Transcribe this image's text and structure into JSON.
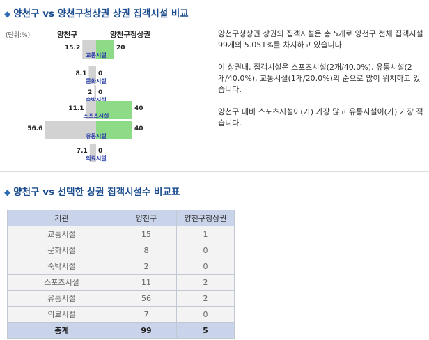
{
  "section1": {
    "title": "양천구 vs 양천구청상권 상권 집객시설 비교"
  },
  "unit_label": "(단위:%)",
  "chart_head": {
    "left": "양천구",
    "right": "양천구청상권"
  },
  "chart_data": {
    "type": "bar",
    "categories": [
      "교통시설",
      "문화시설",
      "숙박시설",
      "스포츠시설",
      "유통시설",
      "의료시설"
    ],
    "series": [
      {
        "name": "양천구",
        "values": [
          15.2,
          8.1,
          2,
          11.1,
          56.6,
          7.1
        ]
      },
      {
        "name": "양천구청상권",
        "values": [
          20,
          0,
          0,
          40,
          40,
          0
        ]
      }
    ],
    "left_labels": [
      "15.2",
      "8.1",
      "2",
      "11.1",
      "56.6",
      "7.1"
    ],
    "right_labels": [
      "20",
      "0",
      "0",
      "40",
      "40",
      "0"
    ],
    "colors": {
      "left": "#d2d2d2",
      "right": "#8ddb86",
      "category_label": "#2a3fa8",
      "value_label": "#222222"
    }
  },
  "description": {
    "p1": "양천구청상권 상권의 집객시설은 총 5개로 양천구 전체 집객시설 99개의 5.051%를 차지하고 있습니다",
    "p2": "이 상권내, 집객시설은 스포츠시설(2개/40.0%), 유통시설(2개/40.0%), 교통시설(1개/20.0%)의 순으로 많이 위치하고 있습니다.",
    "p3": "양천구 대비 스포츠시설이(가) 가장 많고 유통시설이(가) 가장 적습니다."
  },
  "section2": {
    "title": "양천구 vs 선택한 상권 집객시설수 비교표"
  },
  "table": {
    "headers": [
      "기관",
      "양천구",
      "양천구청상권"
    ],
    "rows": [
      [
        "교통시설",
        "15",
        "1"
      ],
      [
        "문화시설",
        "8",
        "0"
      ],
      [
        "숙박시설",
        "2",
        "0"
      ],
      [
        "스포츠시설",
        "11",
        "2"
      ],
      [
        "유통시설",
        "56",
        "2"
      ],
      [
        "의료시설",
        "7",
        "0"
      ]
    ],
    "total": [
      "총계",
      "99",
      "5"
    ]
  },
  "icons": {
    "section_bullet": "diamond-bullet-icon"
  }
}
